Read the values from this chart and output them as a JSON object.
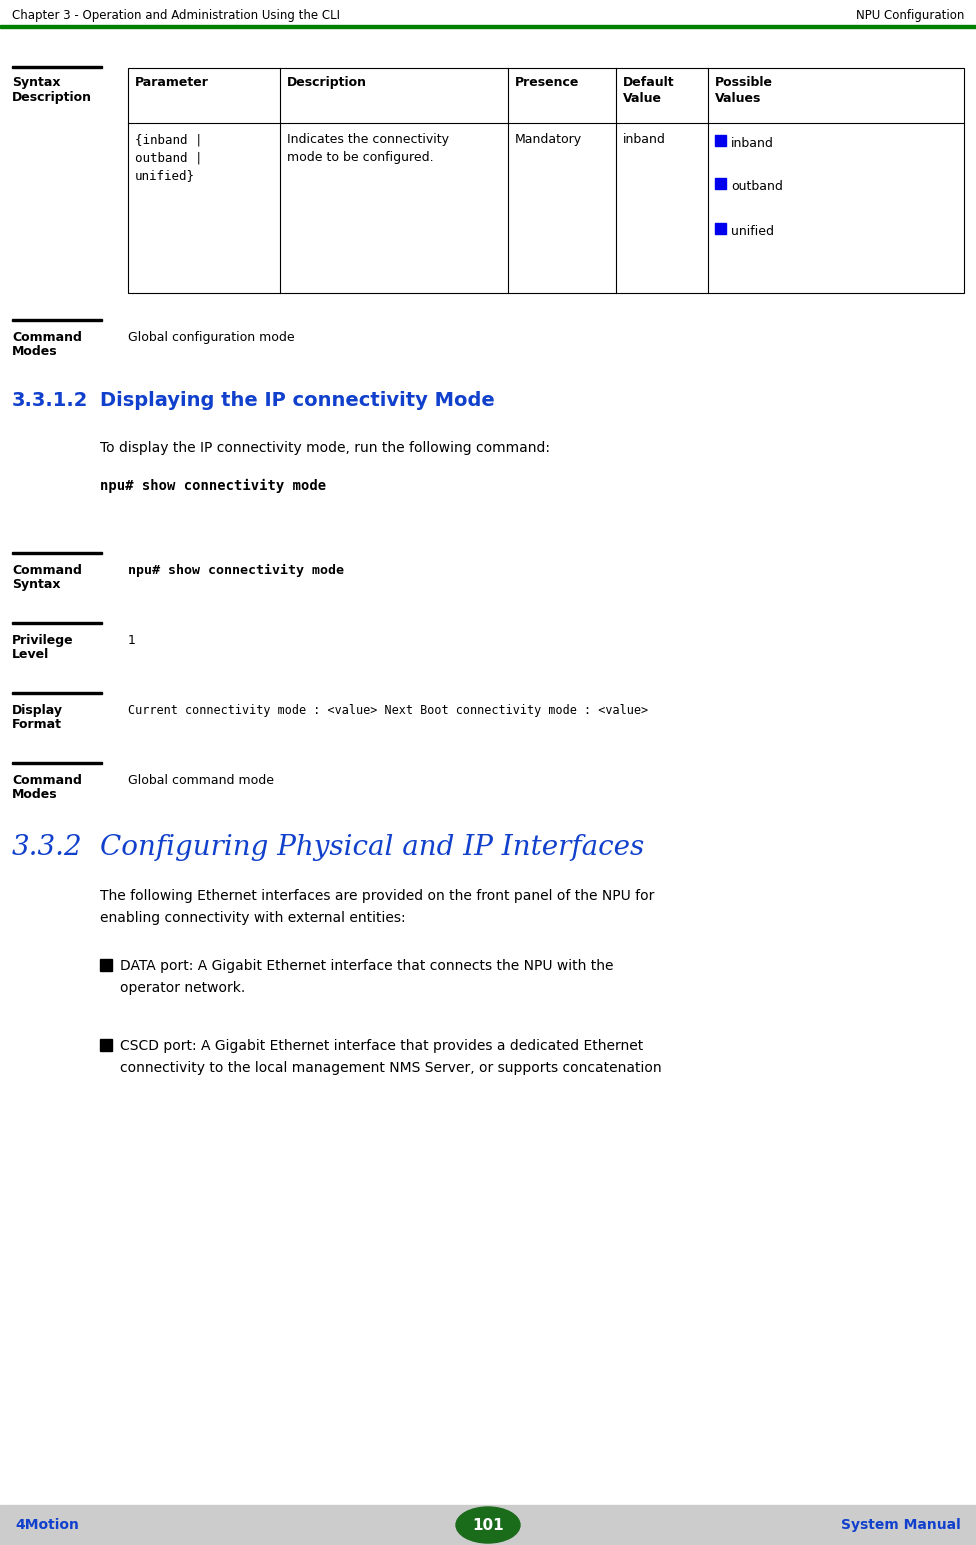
{
  "header_left": "Chapter 3 - Operation and Administration Using the CLI",
  "header_right": "NPU Configuration",
  "footer_left": "4Motion",
  "footer_center": "101",
  "footer_right": "System Manual",
  "header_line_color": "#008000",
  "footer_bg_color": "#cccccc",
  "footer_oval_color": "#1a6b1a",
  "table_param": "{inband |\noutband |\nunified}",
  "table_desc": "Indicates the connectivity\nmode to be configured.",
  "table_presence": "Mandatory",
  "table_default": "inband",
  "table_possible": [
    "inband",
    "outband",
    "unified"
  ],
  "bullet_color": "#0000EE",
  "cmd_modes_value": "Global configuration mode",
  "section_num": "3.3.1.2",
  "section_title": "Displaying the IP connectivity Mode",
  "section_intro": "To display the IP connectivity mode, run the following command:",
  "section_cmd": "npu# show connectivity mode",
  "cmd_syntax_value": "npu# show connectivity mode",
  "privilege_value": "1",
  "display_value": "Current connectivity mode : <value> Next Boot connectivity mode : <value>",
  "cmd_modes2_value": "Global command mode",
  "section2_num": "3.3.2",
  "section2_title": "Configuring Physical and IP Interfaces",
  "section2_intro1": "The following Ethernet interfaces are provided on the front panel of the NPU for",
  "section2_intro2": "enabling connectivity with external entities:",
  "bullet1_line1": "DATA port: A Gigabit Ethernet interface that connects the NPU with the",
  "bullet1_line2": "operator network.",
  "bullet2_line1": "CSCD port: A Gigabit Ethernet interface that provides a dedicated Ethernet",
  "bullet2_line2": "connectivity to the local management NMS Server, or supports concatenation",
  "bg_color": "#ffffff",
  "blue_color": "#0000EE",
  "blue_title_color": "#1040CC"
}
